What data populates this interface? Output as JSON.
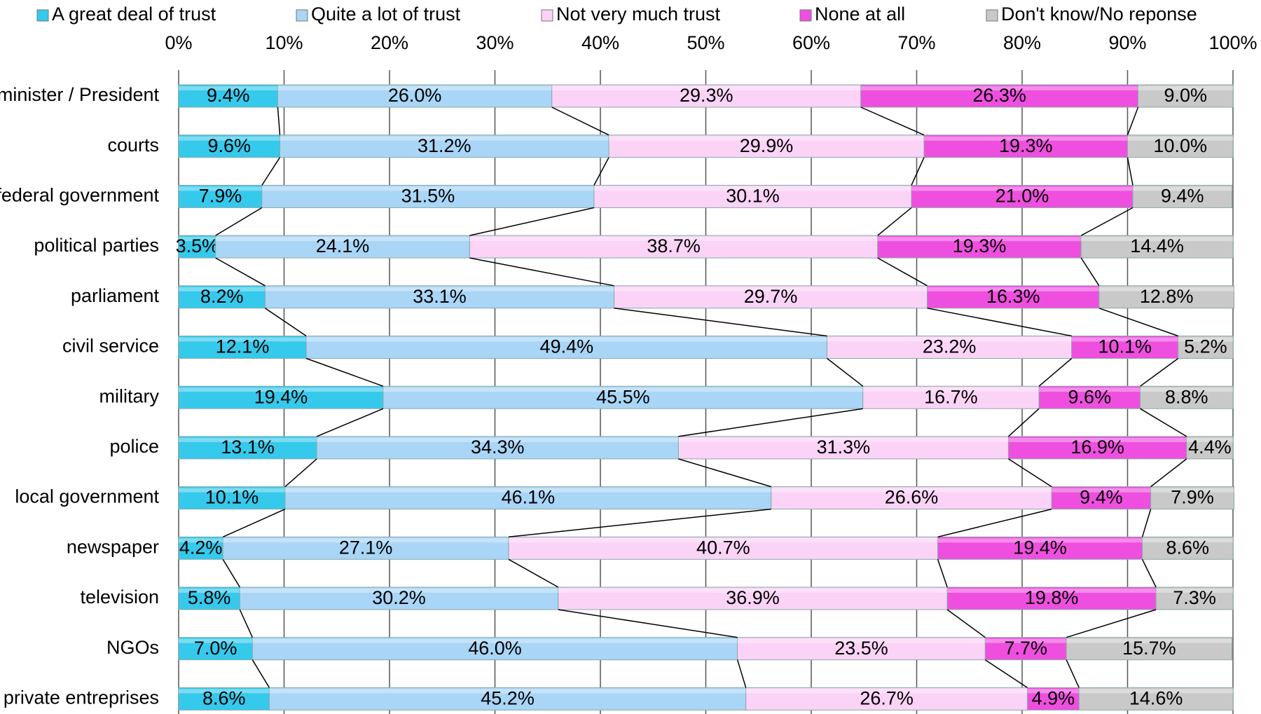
{
  "chart_data": {
    "type": "stacked-bar-horizontal",
    "categories": [
      "e minister / President",
      "courts",
      "federal government",
      "political parties",
      "parliament",
      "civil service",
      "military",
      "police",
      "local government",
      "newspaper",
      "television",
      "NGOs",
      "private entreprises"
    ],
    "series": [
      {
        "name": "A great deal of trust",
        "color": "#35c9ec",
        "values": [
          9.4,
          9.6,
          7.9,
          3.5,
          8.2,
          12.1,
          19.4,
          13.1,
          10.1,
          4.2,
          5.8,
          7.0,
          8.6
        ],
        "value_labels": [
          "9.4%",
          "9.6%",
          "7.9%",
          "3.5%",
          "8.2%",
          "12.1%",
          "19.4%",
          "13.1%",
          "10.1%",
          "4.2%",
          "5.8%",
          "7.0%",
          "8.6%"
        ]
      },
      {
        "name": "Quite a lot of trust",
        "color": "#a9d5f6",
        "values": [
          26.0,
          31.2,
          31.5,
          24.1,
          33.1,
          49.4,
          45.5,
          34.3,
          46.1,
          27.1,
          30.2,
          46.0,
          45.2
        ],
        "value_labels": [
          "26.0%",
          "31.2%",
          "31.5%",
          "24.1%",
          "33.1%",
          "49.4%",
          "45.5%",
          "34.3%",
          "46.1%",
          "27.1%",
          "30.2%",
          "46.0%",
          "45.2%"
        ]
      },
      {
        "name": "Not very much trust",
        "color": "#fbd3f6",
        "values": [
          29.3,
          29.9,
          30.1,
          38.7,
          29.7,
          23.2,
          16.7,
          31.3,
          26.6,
          40.7,
          36.9,
          23.5,
          26.7
        ],
        "value_labels": [
          "29.3%",
          "29.9%",
          "30.1%",
          "38.7%",
          "29.7%",
          "23.2%",
          "16.7%",
          "31.3%",
          "26.6%",
          "40.7%",
          "36.9%",
          "23.5%",
          "26.7%"
        ]
      },
      {
        "name": "None at all",
        "color": "#ef4fdf",
        "values": [
          26.3,
          19.3,
          21.0,
          19.3,
          16.3,
          10.1,
          9.6,
          16.9,
          9.4,
          19.4,
          19.8,
          7.7,
          4.9
        ],
        "value_labels": [
          "26.3%",
          "19.3%",
          "21.0%",
          "19.3%",
          "16.3%",
          "10.1%",
          "9.6%",
          "16.9%",
          "9.4%",
          "19.4%",
          "19.8%",
          "7.7%",
          "4.9%"
        ]
      },
      {
        "name": "Don't know/No reponse",
        "color": "#c9c9c9",
        "values": [
          9.0,
          10.0,
          9.4,
          14.4,
          12.8,
          5.2,
          8.8,
          4.4,
          7.9,
          8.6,
          7.3,
          15.7,
          14.6
        ],
        "value_labels": [
          "9.0%",
          "10.0%",
          "9.4%",
          "14.4%",
          "12.8%",
          "5.2%",
          "8.8%",
          "4.4%",
          "7.9%",
          "8.6%",
          "7.3%",
          "15.7%",
          "14.6%"
        ]
      }
    ],
    "xlim": [
      0,
      100
    ],
    "xticks": [
      {
        "value": 0,
        "label": "0%"
      },
      {
        "value": 10,
        "label": "10%"
      },
      {
        "value": 20,
        "label": "20%"
      },
      {
        "value": 30,
        "label": "30%"
      },
      {
        "value": 40,
        "label": "40%"
      },
      {
        "value": 50,
        "label": "50%"
      },
      {
        "value": 60,
        "label": "60%"
      },
      {
        "value": 70,
        "label": "70%"
      },
      {
        "value": 80,
        "label": "80%"
      },
      {
        "value": 90,
        "label": "90%"
      },
      {
        "value": 100,
        "label": "100%"
      }
    ],
    "grid": true,
    "legend": "top"
  }
}
